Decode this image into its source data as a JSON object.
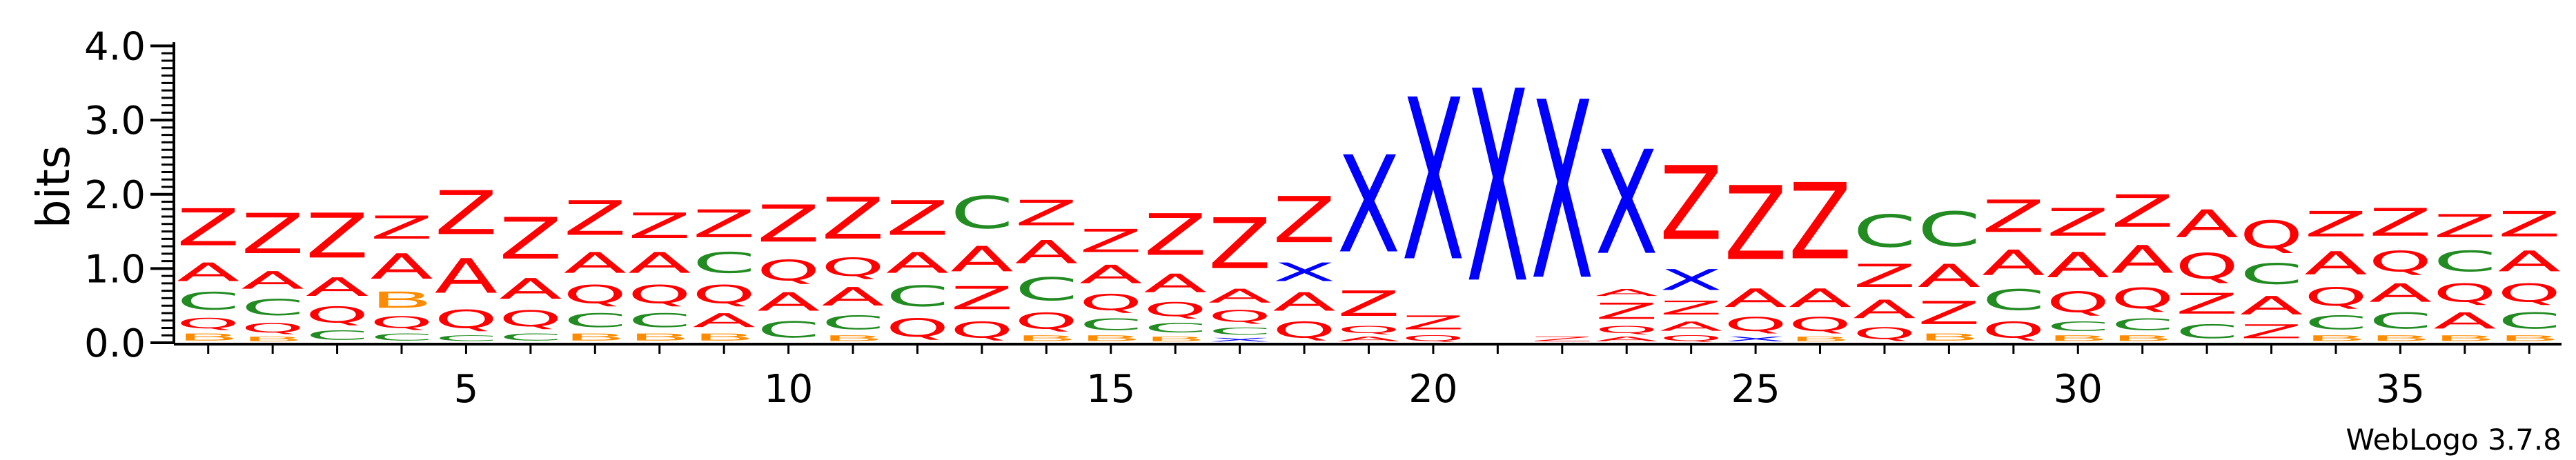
{
  "chart_data": {
    "type": "sequence-logo",
    "ylabel": "bits",
    "ylim": [
      0,
      4.2
    ],
    "yticks": [
      "0.0",
      "1.0",
      "2.0",
      "3.0",
      "4.0"
    ],
    "xticks": [
      5,
      10,
      15,
      20,
      25,
      30,
      35
    ],
    "credit": "WebLogo 3.7.8",
    "colors": {
      "Z": "#ff0000",
      "A": "#ff0000",
      "Q": "#ff0000",
      "C": "#228b22",
      "B": "#ff8c00",
      "X": "#0000ff"
    },
    "positions": [
      {
        "pos": 1,
        "stack": [
          [
            "B",
            0.15
          ],
          [
            "Q",
            0.22
          ],
          [
            "C",
            0.38
          ],
          [
            "A",
            0.4
          ],
          [
            "Z",
            0.8
          ]
        ]
      },
      {
        "pos": 2,
        "stack": [
          [
            "B",
            0.1
          ],
          [
            "Q",
            0.2
          ],
          [
            "C",
            0.35
          ],
          [
            "A",
            0.38
          ],
          [
            "Z",
            0.87
          ]
        ]
      },
      {
        "pos": 3,
        "stack": [
          [
            "C",
            0.2
          ],
          [
            "Q",
            0.35
          ],
          [
            "A",
            0.4
          ],
          [
            "Z",
            0.97
          ]
        ]
      },
      {
        "pos": 4,
        "stack": [
          [
            "C",
            0.15
          ],
          [
            "Q",
            0.25
          ],
          [
            "B",
            0.35
          ],
          [
            "A",
            0.55
          ],
          [
            "Z",
            0.5
          ]
        ]
      },
      {
        "pos": 5,
        "stack": [
          [
            "C",
            0.12
          ],
          [
            "Q",
            0.4
          ],
          [
            "A",
            0.75
          ],
          [
            "Z",
            0.95
          ]
        ]
      },
      {
        "pos": 6,
        "stack": [
          [
            "C",
            0.15
          ],
          [
            "Q",
            0.35
          ],
          [
            "A",
            0.45
          ],
          [
            "Z",
            0.9
          ]
        ]
      },
      {
        "pos": 7,
        "stack": [
          [
            "B",
            0.15
          ],
          [
            "C",
            0.3
          ],
          [
            "Q",
            0.4
          ],
          [
            "A",
            0.45
          ],
          [
            "Z",
            0.75
          ]
        ]
      },
      {
        "pos": 8,
        "stack": [
          [
            "B",
            0.15
          ],
          [
            "C",
            0.3
          ],
          [
            "Q",
            0.4
          ],
          [
            "A",
            0.45
          ],
          [
            "Z",
            0.55
          ]
        ]
      },
      {
        "pos": 9,
        "stack": [
          [
            "B",
            0.15
          ],
          [
            "A",
            0.3
          ],
          [
            "Q",
            0.4
          ],
          [
            "C",
            0.45
          ],
          [
            "Z",
            0.6
          ]
        ]
      },
      {
        "pos": 10,
        "stack": [
          [
            "C",
            0.35
          ],
          [
            "A",
            0.4
          ],
          [
            "Q",
            0.45
          ],
          [
            "Z",
            0.8
          ]
        ]
      },
      {
        "pos": 11,
        "stack": [
          [
            "B",
            0.12
          ],
          [
            "C",
            0.3
          ],
          [
            "A",
            0.4
          ],
          [
            "Q",
            0.4
          ],
          [
            "Z",
            0.9
          ]
        ]
      },
      {
        "pos": 12,
        "stack": [
          [
            "Q",
            0.4
          ],
          [
            "C",
            0.45
          ],
          [
            "A",
            0.45
          ],
          [
            "Z",
            0.75
          ]
        ]
      },
      {
        "pos": 13,
        "stack": [
          [
            "Q",
            0.35
          ],
          [
            "Z",
            0.5
          ],
          [
            "A",
            0.55
          ],
          [
            "C",
            0.7
          ]
        ]
      },
      {
        "pos": 14,
        "stack": [
          [
            "B",
            0.12
          ],
          [
            "Q",
            0.35
          ],
          [
            "C",
            0.5
          ],
          [
            "A",
            0.5
          ],
          [
            "Z",
            0.55
          ]
        ]
      },
      {
        "pos": 15,
        "stack": [
          [
            "B",
            0.12
          ],
          [
            "C",
            0.25
          ],
          [
            "Q",
            0.35
          ],
          [
            "A",
            0.4
          ],
          [
            "Z",
            0.5
          ]
        ]
      },
      {
        "pos": 16,
        "stack": [
          [
            "B",
            0.1
          ],
          [
            "C",
            0.2
          ],
          [
            "Q",
            0.3
          ],
          [
            "A",
            0.4
          ],
          [
            "Z",
            0.9
          ]
        ]
      },
      {
        "pos": 17,
        "stack": [
          [
            "X",
            0.08
          ],
          [
            "C",
            0.15
          ],
          [
            "Q",
            0.25
          ],
          [
            "A",
            0.3
          ],
          [
            "Z",
            1.1
          ]
        ]
      },
      {
        "pos": 18,
        "stack": [
          [
            "Q",
            0.35
          ],
          [
            "A",
            0.4
          ],
          [
            "X",
            0.4
          ],
          [
            "Z",
            1.0
          ]
        ]
      },
      {
        "pos": 19,
        "stack": [
          [
            "A",
            0.1
          ],
          [
            "Q",
            0.15
          ],
          [
            "Z",
            0.55
          ],
          [
            "X",
            2.1
          ]
        ]
      },
      {
        "pos": 20,
        "stack": [
          [
            "Q",
            0.12
          ],
          [
            "Z",
            0.3
          ],
          [
            "X",
            3.5
          ]
        ]
      },
      {
        "pos": 21,
        "stack": [
          [
            "X",
            4.15
          ]
        ]
      },
      {
        "pos": 22,
        "stack": [
          [
            "Z",
            0.1
          ],
          [
            "X",
            3.85
          ]
        ]
      },
      {
        "pos": 23,
        "stack": [
          [
            "A",
            0.1
          ],
          [
            "Q",
            0.15
          ],
          [
            "Z",
            0.35
          ],
          [
            "A",
            0.15
          ],
          [
            "X",
            2.25
          ]
        ]
      },
      {
        "pos": 24,
        "stack": [
          [
            "Q",
            0.12
          ],
          [
            "A",
            0.2
          ],
          [
            "Z",
            0.3
          ],
          [
            "X",
            0.45
          ],
          [
            "Z",
            1.6
          ]
        ]
      },
      {
        "pos": 25,
        "stack": [
          [
            "X",
            0.1
          ],
          [
            "Q",
            0.3
          ],
          [
            "A",
            0.4
          ],
          [
            "Z",
            1.6
          ]
        ]
      },
      {
        "pos": 26,
        "stack": [
          [
            "B",
            0.1
          ],
          [
            "Q",
            0.3
          ],
          [
            "A",
            0.4
          ],
          [
            "Z",
            1.65
          ]
        ]
      },
      {
        "pos": 27,
        "stack": [
          [
            "Q",
            0.25
          ],
          [
            "A",
            0.4
          ],
          [
            "Z",
            0.5
          ],
          [
            "C",
            0.7
          ]
        ]
      },
      {
        "pos": 28,
        "stack": [
          [
            "B",
            0.15
          ],
          [
            "Z",
            0.5
          ],
          [
            "A",
            0.5
          ],
          [
            "C",
            0.75
          ]
        ]
      },
      {
        "pos": 29,
        "stack": [
          [
            "Q",
            0.35
          ],
          [
            "C",
            0.45
          ],
          [
            "A",
            0.55
          ],
          [
            "Z",
            0.7
          ]
        ]
      },
      {
        "pos": 30,
        "stack": [
          [
            "B",
            0.12
          ],
          [
            "C",
            0.2
          ],
          [
            "Q",
            0.45
          ],
          [
            "A",
            0.55
          ],
          [
            "Z",
            0.6
          ]
        ]
      },
      {
        "pos": 31,
        "stack": [
          [
            "B",
            0.12
          ],
          [
            "C",
            0.25
          ],
          [
            "Q",
            0.45
          ],
          [
            "A",
            0.6
          ],
          [
            "Z",
            0.7
          ]
        ]
      },
      {
        "pos": 32,
        "stack": [
          [
            "C",
            0.3
          ],
          [
            "Z",
            0.45
          ],
          [
            "Q",
            0.55
          ],
          [
            "A",
            0.6
          ]
        ]
      },
      {
        "pos": 33,
        "stack": [
          [
            "Z",
            0.3
          ],
          [
            "A",
            0.4
          ],
          [
            "C",
            0.45
          ],
          [
            "Q",
            0.6
          ]
        ]
      },
      {
        "pos": 34,
        "stack": [
          [
            "B",
            0.12
          ],
          [
            "C",
            0.3
          ],
          [
            "Q",
            0.4
          ],
          [
            "A",
            0.5
          ],
          [
            "Z",
            0.55
          ]
        ]
      },
      {
        "pos": 35,
        "stack": [
          [
            "B",
            0.12
          ],
          [
            "C",
            0.35
          ],
          [
            "A",
            0.4
          ],
          [
            "Q",
            0.45
          ],
          [
            "Z",
            0.6
          ]
        ]
      },
      {
        "pos": 36,
        "stack": [
          [
            "B",
            0.12
          ],
          [
            "A",
            0.35
          ],
          [
            "Q",
            0.4
          ],
          [
            "C",
            0.45
          ],
          [
            "Z",
            0.5
          ]
        ]
      },
      {
        "pos": 37,
        "stack": [
          [
            "B",
            0.12
          ],
          [
            "C",
            0.35
          ],
          [
            "Q",
            0.4
          ],
          [
            "A",
            0.45
          ],
          [
            "Z",
            0.55
          ]
        ]
      }
    ]
  }
}
